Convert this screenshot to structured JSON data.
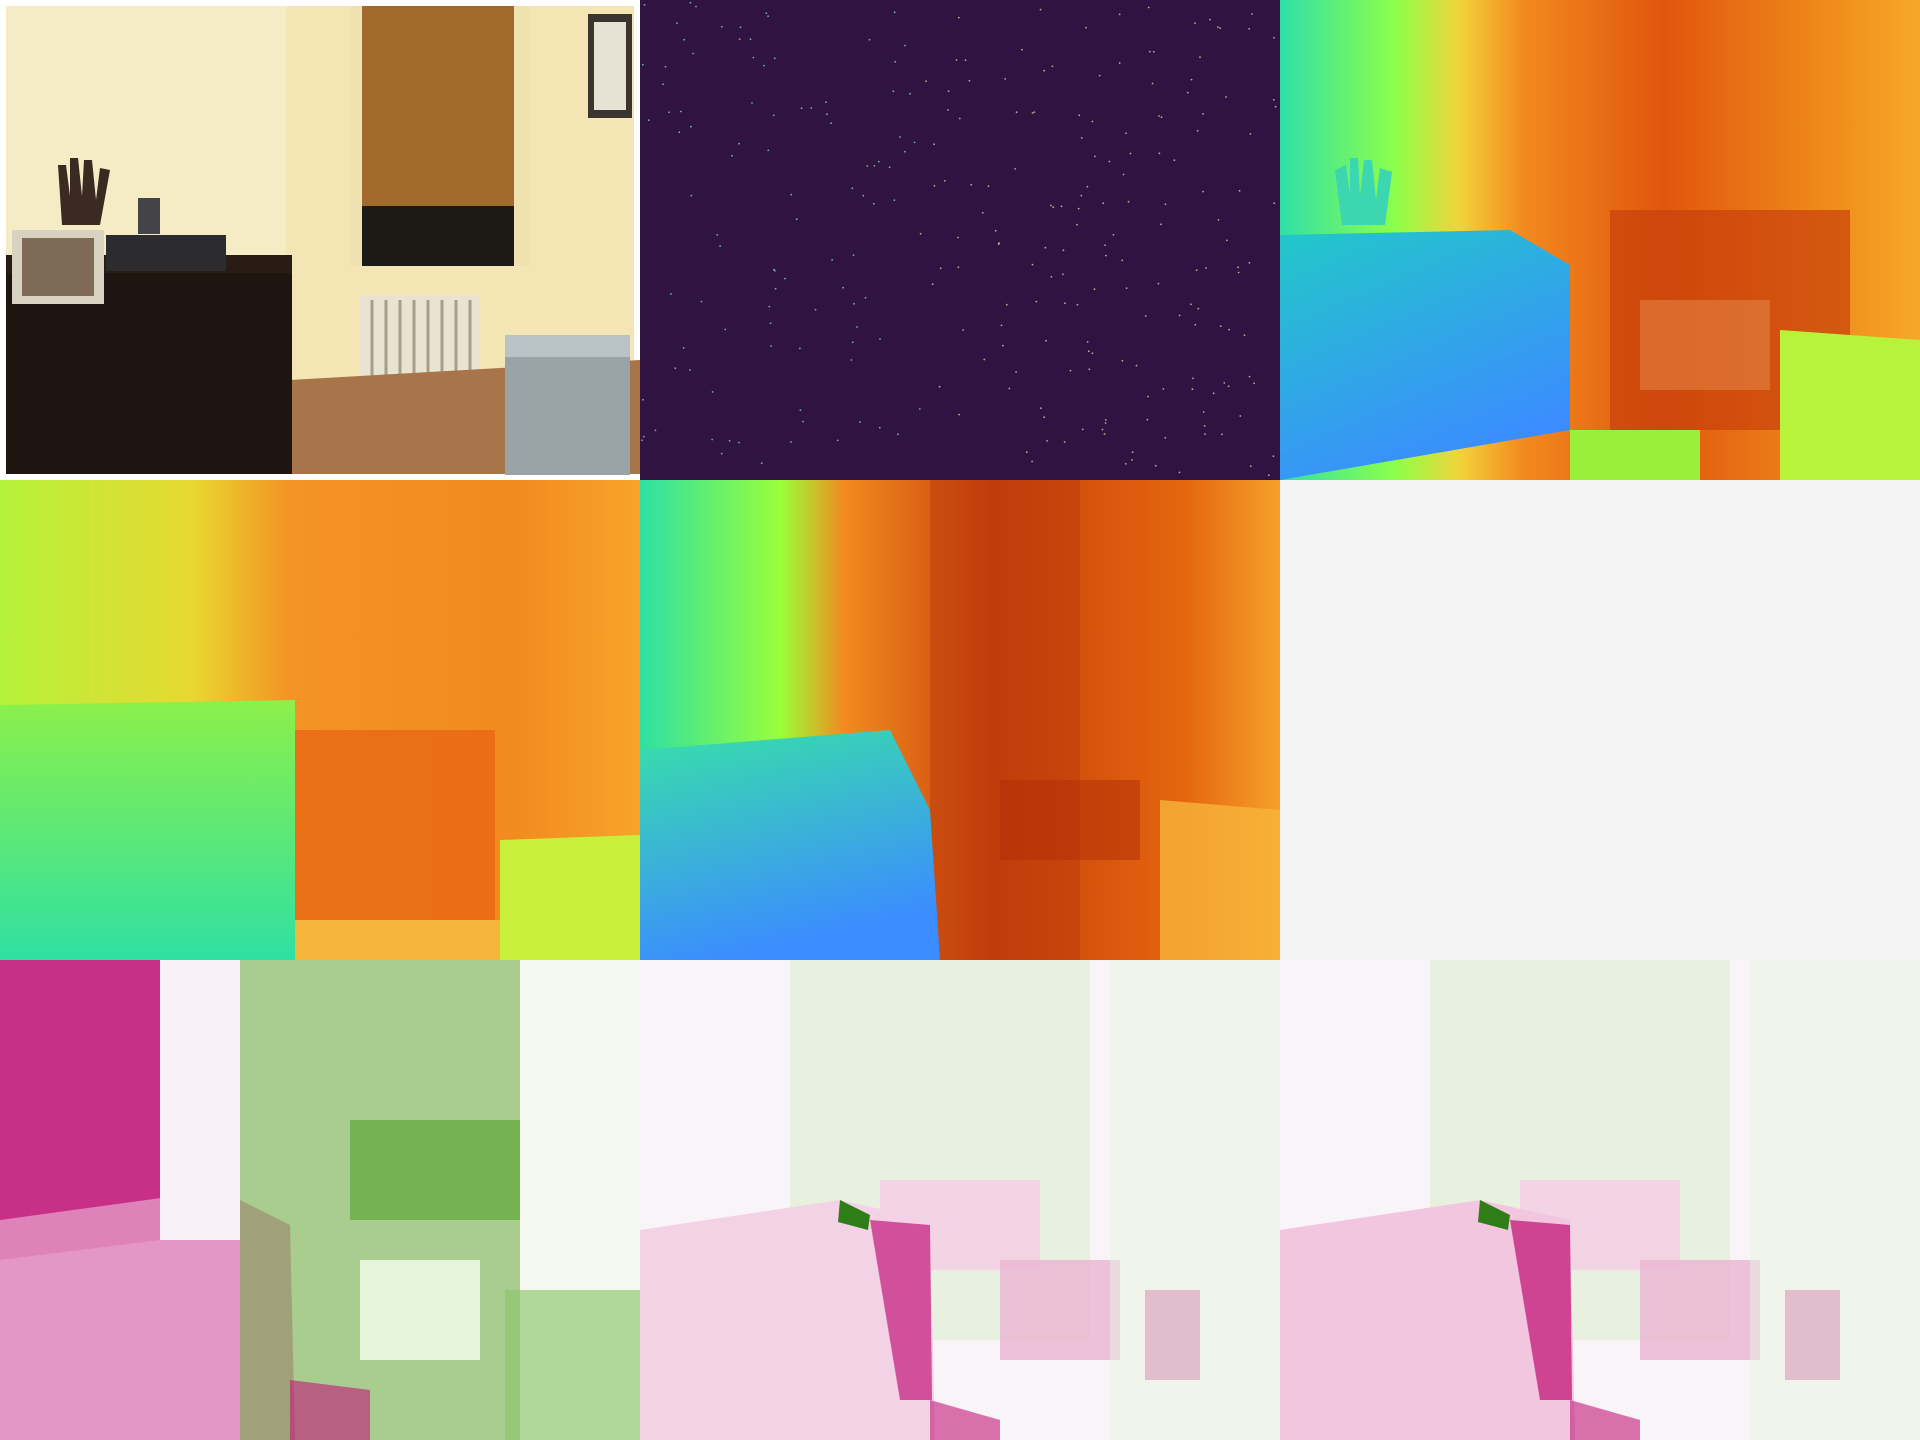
{
  "layout": {
    "rows": 3,
    "cols": 3
  },
  "panels": [
    {
      "id": "rgb-photo",
      "kind": "photo"
    },
    {
      "id": "sparse-depth",
      "kind": "sparse-points",
      "background": "#311342"
    },
    {
      "id": "ground-truth-depth",
      "kind": "depth-colormap"
    },
    {
      "id": "prediction-depth-a",
      "kind": "depth-colormap"
    },
    {
      "id": "prediction-depth-b",
      "kind": "depth-colormap"
    },
    {
      "id": "blank-panel",
      "kind": "empty",
      "background": "#f4f4f4"
    },
    {
      "id": "error-map-a",
      "kind": "diverging-error"
    },
    {
      "id": "error-map-b",
      "kind": "diverging-error"
    },
    {
      "id": "error-map-c",
      "kind": "diverging-error"
    }
  ],
  "colors": {
    "near": "#3b8cff",
    "mid": "#a8ff3a",
    "far": "#e0460a",
    "error_pos": "#c2187a",
    "error_neg": "#4d9a21",
    "error_zero": "#f7f7f7"
  }
}
